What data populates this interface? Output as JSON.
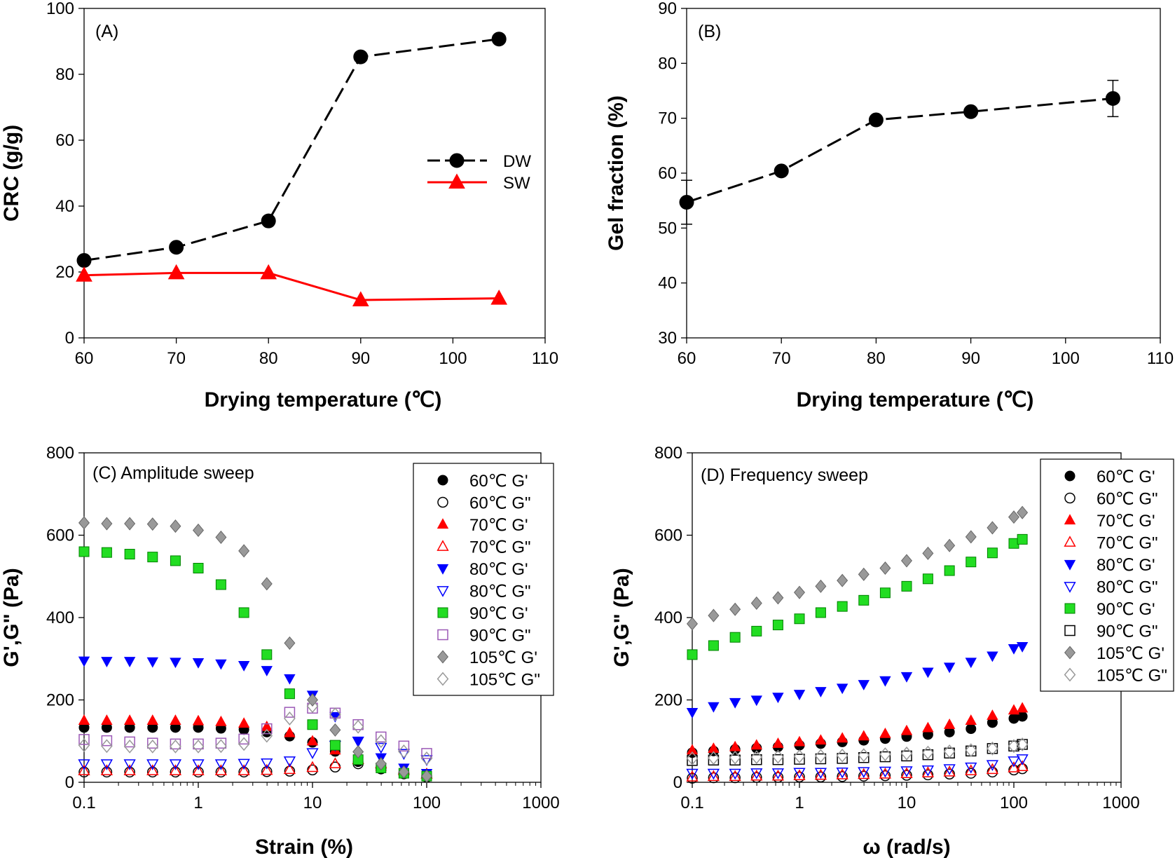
{
  "chart_data": [
    {
      "type": "line",
      "panel": "(A)",
      "xlabel": "Drying temperature (℃)",
      "ylabel": "CRC (g/g)",
      "xlim": [
        60,
        110
      ],
      "ylim": [
        0,
        100
      ],
      "xticks": [
        "60",
        "70",
        "80",
        "90",
        "100",
        "110"
      ],
      "yticks": [
        "0",
        "20",
        "40",
        "60",
        "80",
        "100"
      ],
      "legend_position": "center-right",
      "series": [
        {
          "name": "DW",
          "color": "#000000",
          "marker": "circle",
          "dash": true,
          "x": [
            60,
            70,
            80,
            90,
            105
          ],
          "y": [
            23.5,
            27.5,
            35.5,
            85.3,
            90.7
          ]
        },
        {
          "name": "SW",
          "color": "#ff0000",
          "marker": "triangle",
          "dash": false,
          "x": [
            60,
            70,
            80,
            90,
            105
          ],
          "y": [
            19,
            19.7,
            19.7,
            11.5,
            12
          ]
        }
      ]
    },
    {
      "type": "line",
      "panel": "(B)",
      "xlabel": "Drying temperature (℃)",
      "ylabel": "Gel fraction (%)",
      "xlim": [
        60,
        110
      ],
      "ylim": [
        30,
        90
      ],
      "xticks": [
        "60",
        "70",
        "80",
        "90",
        "100",
        "110"
      ],
      "yticks": [
        "30",
        "40",
        "50",
        "60",
        "70",
        "80",
        "90"
      ],
      "series": [
        {
          "name": "Gel fraction",
          "color": "#000000",
          "marker": "circle",
          "dash": true,
          "x": [
            60,
            70,
            80,
            90,
            105
          ],
          "y": [
            54.7,
            60.4,
            69.7,
            71.2,
            73.6
          ],
          "err": [
            4,
            0,
            0,
            0,
            3.3
          ]
        }
      ]
    },
    {
      "type": "scatter",
      "panel": "(C) Amplitude sweep",
      "xlabel": "Strain (%)",
      "ylabel": "G',G\" (Pa)",
      "xscale": "log",
      "xlim": [
        0.1,
        1000
      ],
      "ylim": [
        0,
        800
      ],
      "xticks": [
        "0.1",
        "1",
        "10",
        "100",
        "1000"
      ],
      "yticks": [
        "0",
        "200",
        "400",
        "600",
        "800"
      ],
      "legend_position": "top-right",
      "x": [
        0.1,
        0.158,
        0.251,
        0.398,
        0.631,
        1,
        1.58,
        2.51,
        3.98,
        6.31,
        10,
        15.8,
        25.1,
        39.8,
        63.1,
        100
      ],
      "series": [
        {
          "name": "60℃ G'",
          "marker": "circle",
          "fill": "#000000",
          "stroke": "#000000",
          "y": [
            133,
            133,
            133,
            133,
            133,
            133,
            131,
            128,
            122,
            112,
            97,
            75,
            50,
            32,
            20,
            12
          ]
        },
        {
          "name": "60℃ G\"",
          "marker": "circle",
          "fill": "none",
          "stroke": "#000000",
          "y": [
            25,
            25,
            25,
            25,
            25,
            25,
            25,
            25,
            26,
            27,
            30,
            37,
            45,
            35,
            23,
            15
          ]
        },
        {
          "name": "70℃ G'",
          "marker": "triangle-up",
          "fill": "#ff0000",
          "stroke": "#ff0000",
          "y": [
            150,
            150,
            150,
            150,
            150,
            149,
            147,
            143,
            135,
            120,
            100,
            78,
            55,
            38,
            27,
            20
          ]
        },
        {
          "name": "70℃ G\"",
          "marker": "triangle-up",
          "fill": "none",
          "stroke": "#ff0000",
          "y": [
            28,
            28,
            28,
            28,
            28,
            28,
            28,
            28,
            29,
            31,
            36,
            45,
            55,
            45,
            30,
            20
          ]
        },
        {
          "name": "80℃ G'",
          "marker": "triangle-down",
          "fill": "#0000ff",
          "stroke": "#0000ff",
          "y": [
            295,
            294,
            294,
            293,
            292,
            291,
            288,
            284,
            272,
            252,
            212,
            160,
            100,
            60,
            35,
            22
          ]
        },
        {
          "name": "80℃ G\"",
          "marker": "triangle-down",
          "fill": "none",
          "stroke": "#0000ff",
          "y": [
            45,
            45,
            45,
            45,
            45,
            45,
            45,
            46,
            47,
            52,
            72,
            90,
            100,
            85,
            70,
            55
          ]
        },
        {
          "name": "90℃ G'",
          "marker": "square",
          "fill": "#22dd22",
          "stroke": "#008000",
          "y": [
            560,
            558,
            554,
            547,
            538,
            520,
            480,
            412,
            310,
            215,
            140,
            90,
            55,
            35,
            22,
            15
          ]
        },
        {
          "name": "90℃ G\"",
          "marker": "square",
          "fill": "none",
          "stroke": "#9b59b6",
          "y": [
            104,
            101,
            98,
            95,
            93,
            93,
            95,
            105,
            130,
            170,
            180,
            168,
            140,
            110,
            88,
            70
          ]
        },
        {
          "name": "105℃ G'",
          "marker": "diamond",
          "fill": "#999999",
          "stroke": "#666666",
          "y": [
            630,
            628,
            628,
            627,
            622,
            612,
            595,
            562,
            482,
            338,
            200,
            127,
            74,
            45,
            25,
            15
          ]
        },
        {
          "name": "105℃ G\"",
          "marker": "diamond",
          "fill": "none",
          "stroke": "#999999",
          "y": [
            90,
            88,
            87,
            87,
            87,
            87,
            88,
            93,
            113,
            155,
            185,
            165,
            135,
            100,
            75,
            58
          ]
        }
      ]
    },
    {
      "type": "scatter",
      "panel": "(D) Frequency sweep",
      "xlabel": "ω (rad/s)",
      "ylabel": "G',G\" (Pa)",
      "xscale": "log",
      "xlim": [
        0.1,
        1000
      ],
      "ylim": [
        0,
        800
      ],
      "xticks": [
        "0.1",
        "1",
        "10",
        "100",
        "1000"
      ],
      "yticks": [
        "0",
        "200",
        "400",
        "600",
        "800"
      ],
      "legend_position": "top-right",
      "x": [
        0.1,
        0.158,
        0.251,
        0.398,
        0.631,
        1,
        1.58,
        2.51,
        3.98,
        6.31,
        10,
        15.8,
        25.1,
        39.8,
        63.1,
        100,
        120
      ],
      "series": [
        {
          "name": "60℃ G'",
          "marker": "circle",
          "fill": "#000000",
          "stroke": "#000000",
          "y": [
            72,
            76,
            80,
            83,
            86,
            90,
            94,
            98,
            102,
            106,
            111,
            116,
            122,
            130,
            145,
            155,
            160
          ]
        },
        {
          "name": "60℃ G\"",
          "marker": "circle",
          "fill": "none",
          "stroke": "#000000",
          "y": [
            10,
            11,
            11,
            12,
            12,
            13,
            13,
            14,
            15,
            16,
            17,
            18,
            20,
            22,
            25,
            30,
            33
          ]
        },
        {
          "name": "70℃ G'",
          "marker": "triangle-up",
          "fill": "#ff0000",
          "stroke": "#ff0000",
          "y": [
            78,
            82,
            86,
            90,
            94,
            98,
            102,
            107,
            112,
            118,
            125,
            132,
            140,
            150,
            162,
            175,
            180
          ]
        },
        {
          "name": "70℃ G\"",
          "marker": "triangle-up",
          "fill": "none",
          "stroke": "#ff0000",
          "y": [
            13,
            14,
            14,
            15,
            15,
            16,
            17,
            18,
            19,
            20,
            21,
            23,
            25,
            28,
            31,
            35,
            38
          ]
        },
        {
          "name": "80℃ G'",
          "marker": "triangle-down",
          "fill": "#0000ff",
          "stroke": "#0000ff",
          "y": [
            170,
            184,
            194,
            200,
            207,
            214,
            221,
            229,
            238,
            247,
            257,
            268,
            280,
            292,
            307,
            325,
            330
          ]
        },
        {
          "name": "80℃ G\"",
          "marker": "triangle-down",
          "fill": "none",
          "stroke": "#0000ff",
          "y": [
            22,
            22,
            22,
            23,
            23,
            24,
            24,
            25,
            26,
            27,
            28,
            30,
            33,
            37,
            43,
            52,
            57
          ]
        },
        {
          "name": "90℃ G'",
          "marker": "square",
          "fill": "#22dd22",
          "stroke": "#008000",
          "y": [
            310,
            332,
            352,
            367,
            382,
            397,
            412,
            427,
            442,
            460,
            476,
            494,
            514,
            535,
            557,
            580,
            590
          ]
        },
        {
          "name": "90℃ G\"",
          "marker": "square",
          "fill": "none",
          "stroke": "#000000",
          "y": [
            53,
            54,
            54,
            55,
            55,
            56,
            57,
            58,
            60,
            62,
            64,
            67,
            71,
            76,
            82,
            88,
            92
          ]
        },
        {
          "name": "105℃ G'",
          "marker": "diamond",
          "fill": "#999999",
          "stroke": "#666666",
          "y": [
            385,
            405,
            420,
            435,
            448,
            461,
            476,
            490,
            505,
            520,
            538,
            556,
            575,
            596,
            618,
            644,
            655
          ]
        },
        {
          "name": "105℃ G\"",
          "marker": "diamond",
          "fill": "none",
          "stroke": "#999999",
          "y": [
            58,
            59,
            60,
            61,
            62,
            63,
            64,
            65,
            66,
            68,
            70,
            72,
            75,
            78,
            82,
            88,
            92
          ]
        }
      ]
    }
  ]
}
